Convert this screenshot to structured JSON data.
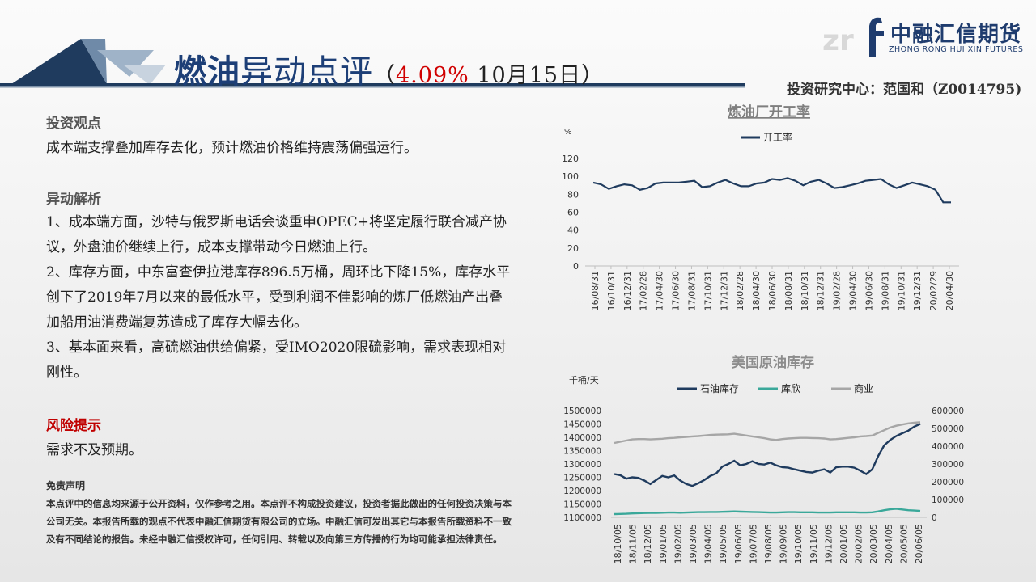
{
  "header": {
    "title_part1": "燃油",
    "title_part2": "异动点评",
    "subtitle_open": "（",
    "subtitle_pct": "4.09%",
    "subtitle_date": " 10月15日）",
    "author": "投资研究中心：范国和（Z0014795)"
  },
  "logo": {
    "text": "中融汇信期货",
    "sub": "ZHONG RONG HUI XIN FUTURES",
    "mark": "f"
  },
  "content": {
    "view_heading": "投资观点",
    "view_text": "成本端支撑叠加库存去化，预计燃油价格维持震荡偏强运行。",
    "analysis_heading": "异动解析",
    "analysis_items": [
      "1、成本端方面，沙特与俄罗斯电话会谈重申OPEC+将坚定履行联合减产协议，外盘油价继续上行，成本支撑带动今日燃油上行。",
      "2、库存方面，中东富查伊拉港库存896.5万桶，周环比下降15%，库存水平创下了2019年7月以来的最低水平，受到利润不佳影响的炼厂低燃油产出叠加船用油消费端复苏造成了库存大幅去化。",
      "3、基本面来看，高硫燃油供给偏紧，受IMO2020限硫影响，需求表现相对刚性。"
    ],
    "risk_heading": "风险提示",
    "risk_text": "需求不及预期。",
    "disclaimer_heading": "免责声明",
    "disclaimer_text": "本点评中的信息均来源于公开资料，仅作参考之用。本点评不构成投资建议，投资者据此做出的任何投资决策与本公司无关。本报告所载的观点不代表中融汇信期货有限公司的立场。中融汇信可发出其它与本报告所载资料不一致及有不同结论的报告。未经中融汇信授权许可，任何引用、转载以及向第三方传播的行为均可能承担法律责任。"
  },
  "colors": {
    "title_blue": "#1d3f77",
    "accent_red": "#d00000",
    "series_dark": "#1f3b5e",
    "series_teal": "#3aa89a",
    "series_gray": "#a6a6a6"
  },
  "chart_data": [
    {
      "type": "line",
      "title": "炼油厂开工率",
      "ylabel": "%",
      "ylim": [
        0,
        120
      ],
      "yticks": [
        0,
        20,
        40,
        60,
        80,
        100,
        120
      ],
      "xtick_labels": [
        "16/08/31",
        "16/10/31",
        "16/12/31",
        "17/02/28",
        "17/04/30",
        "17/06/30",
        "17/08/31",
        "17/10/31",
        "17/12/31",
        "18/02/28",
        "18/04/30",
        "18/06/30",
        "18/08/31",
        "18/10/31",
        "18/12/31",
        "19/02/28",
        "19/04/30",
        "19/06/30",
        "19/08/31",
        "19/10/31",
        "19/12/31",
        "20/02/29",
        "20/04/30"
      ],
      "series": [
        {
          "name": "开工率",
          "color": "#1f3b5e",
          "values": [
            93,
            91,
            86,
            89,
            91,
            90,
            85,
            87,
            92,
            93,
            93,
            93,
            94,
            95,
            88,
            89,
            93,
            96,
            92,
            89,
            89,
            92,
            93,
            97,
            96,
            98,
            95,
            90,
            94,
            96,
            92,
            87,
            88,
            90,
            92,
            95,
            96,
            97,
            91,
            87,
            90,
            93,
            91,
            89,
            85,
            71,
            71
          ]
        }
      ]
    },
    {
      "type": "line",
      "title": "美国原油库存",
      "ylabel": "千桶/天",
      "ylim": [
        1100000,
        1500000
      ],
      "y2lim": [
        0,
        600000
      ],
      "yticks": [
        1100000,
        1150000,
        1200000,
        1250000,
        1300000,
        1350000,
        1400000,
        1450000,
        1500000
      ],
      "y2ticks": [
        0,
        100000,
        200000,
        300000,
        400000,
        500000,
        600000
      ],
      "xtick_labels": [
        "18/10/05",
        "18/11/05",
        "18/12/05",
        "19/01/05",
        "19/02/05",
        "19/03/05",
        "19/04/05",
        "19/05/05",
        "19/06/05",
        "19/07/05",
        "19/08/05",
        "19/09/05",
        "19/10/05",
        "19/11/05",
        "19/12/05",
        "20/01/05",
        "20/02/05",
        "20/03/05",
        "20/04/05",
        "20/05/05",
        "20/06/05"
      ],
      "series": [
        {
          "name": "石油库存",
          "axis": "left",
          "color": "#1f3b5e",
          "values": [
            1262000,
            1258000,
            1245000,
            1250000,
            1248000,
            1238000,
            1225000,
            1240000,
            1255000,
            1250000,
            1257000,
            1238000,
            1225000,
            1218000,
            1228000,
            1240000,
            1255000,
            1265000,
            1290000,
            1300000,
            1312000,
            1295000,
            1300000,
            1310000,
            1300000,
            1298000,
            1305000,
            1295000,
            1288000,
            1286000,
            1280000,
            1275000,
            1270000,
            1268000,
            1275000,
            1280000,
            1268000,
            1288000,
            1290000,
            1290000,
            1286000,
            1275000,
            1262000,
            1280000,
            1330000,
            1370000,
            1390000,
            1405000,
            1415000,
            1425000,
            1440000,
            1450000
          ]
        },
        {
          "name": "库欣",
          "axis": "right",
          "color": "#3aa89a",
          "values": [
            18000,
            19000,
            20000,
            22000,
            23000,
            24000,
            25000,
            25000,
            26000,
            27000,
            27000,
            26000,
            27000,
            28000,
            29000,
            29000,
            30000,
            30000,
            31000,
            32000,
            33000,
            32000,
            31000,
            30000,
            29000,
            28000,
            27000,
            27000,
            28000,
            29000,
            29000,
            28000,
            28000,
            28000,
            27000,
            27000,
            27000,
            28000,
            28000,
            28000,
            28000,
            27000,
            27000,
            28000,
            33000,
            40000,
            45000,
            48000,
            44000,
            40000,
            38000,
            36000
          ]
        },
        {
          "name": "商业",
          "axis": "right",
          "color": "#a6a6a6",
          "values": [
            418000,
            425000,
            432000,
            438000,
            440000,
            440000,
            438000,
            440000,
            442000,
            445000,
            447000,
            450000,
            452000,
            455000,
            457000,
            460000,
            463000,
            465000,
            466000,
            467000,
            470000,
            465000,
            460000,
            455000,
            450000,
            445000,
            438000,
            435000,
            440000,
            443000,
            445000,
            447000,
            447000,
            446000,
            445000,
            443000,
            438000,
            440000,
            443000,
            447000,
            450000,
            455000,
            457000,
            460000,
            475000,
            490000,
            505000,
            515000,
            522000,
            528000,
            532000,
            535000
          ]
        }
      ]
    }
  ]
}
